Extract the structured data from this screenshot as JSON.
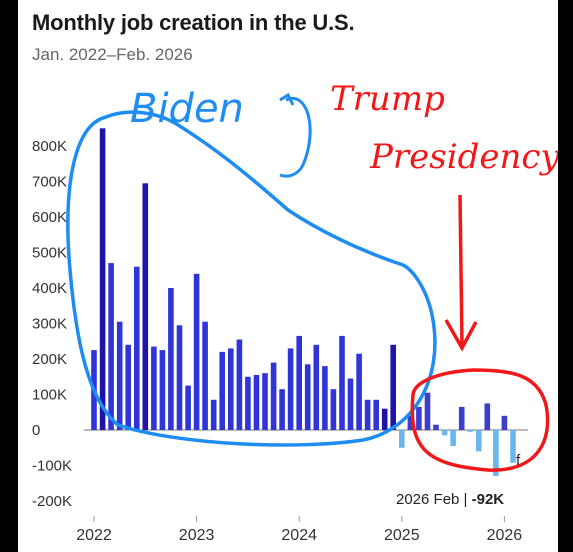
{
  "title": "Monthly job creation in the U.S.",
  "subtitle": "Jan. 2022–Feb. 2026",
  "annotation": {
    "label": "2026 Feb | ",
    "value": "-92K",
    "marker": "f"
  },
  "handwriting": {
    "blue_label": "Biden",
    "red_label_line1": "Trump",
    "red_label_line2": "Presidency"
  },
  "colors": {
    "biden_bar": "#2f35d6",
    "biden_bar_dark": "#1f14a8",
    "positive_recent": "#3c3ccf",
    "negative_bar": "#6cb6ee",
    "blue_ink": "#1e8cf0",
    "red_ink": "#f01818"
  },
  "chart_data": {
    "type": "bar",
    "y_tick_labels": [
      "800K",
      "700K",
      "600K",
      "500K",
      "400K",
      "300K",
      "200K",
      "100K",
      "0",
      "-100K",
      "-200K"
    ],
    "y_ticks": [
      800,
      700,
      600,
      500,
      400,
      300,
      200,
      100,
      0,
      -100,
      -200
    ],
    "x_tick_labels": [
      "2022",
      "2023",
      "2024",
      "2025",
      "2026"
    ],
    "ylim": [
      -200,
      850
    ],
    "unit": "thousands of jobs",
    "x": [
      "2022-01",
      "2022-02",
      "2022-03",
      "2022-04",
      "2022-05",
      "2022-06",
      "2022-07",
      "2022-08",
      "2022-09",
      "2022-10",
      "2022-11",
      "2022-12",
      "2023-01",
      "2023-02",
      "2023-03",
      "2023-04",
      "2023-05",
      "2023-06",
      "2023-07",
      "2023-08",
      "2023-09",
      "2023-10",
      "2023-11",
      "2023-12",
      "2024-01",
      "2024-02",
      "2024-03",
      "2024-04",
      "2024-05",
      "2024-06",
      "2024-07",
      "2024-08",
      "2024-09",
      "2024-10",
      "2024-11",
      "2024-12",
      "2025-01",
      "2025-02",
      "2025-03",
      "2025-04",
      "2025-05",
      "2025-06",
      "2025-07",
      "2025-08",
      "2025-09",
      "2025-10",
      "2025-11",
      "2025-12",
      "2026-01",
      "2026-02"
    ],
    "values": [
      225,
      850,
      470,
      305,
      240,
      460,
      695,
      235,
      225,
      400,
      295,
      125,
      440,
      305,
      85,
      220,
      230,
      255,
      150,
      155,
      160,
      190,
      115,
      230,
      265,
      185,
      240,
      180,
      115,
      265,
      145,
      215,
      85,
      85,
      60,
      240,
      -50,
      40,
      65,
      105,
      15,
      -15,
      -45,
      65,
      -5,
      -60,
      75,
      -130,
      40,
      -92
    ],
    "title": "Monthly job creation in the U.S.",
    "grid": false
  }
}
